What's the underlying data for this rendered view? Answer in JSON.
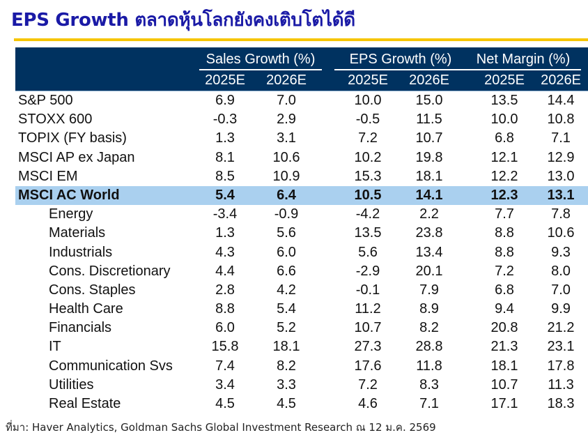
{
  "title": "EPS Growth ตลาดหุ้นโลกยังคงเติบโตได้ดี",
  "colors": {
    "title": "#1a1aa6",
    "rule": "#f6c500",
    "header_bg": "#003260",
    "highlight_bg": "#aad0ef"
  },
  "table": {
    "groups": [
      "Sales Growth (%)",
      "EPS Growth (%)",
      "Net Margin (%)"
    ],
    "years": [
      "2025E",
      "2026E",
      "2025E",
      "2026E",
      "2025E",
      "2026E"
    ],
    "rows": [
      {
        "label": "S&P 500",
        "values": [
          "6.9",
          "7.0",
          "10.0",
          "15.0",
          "13.5",
          "14.4"
        ]
      },
      {
        "label": "STOXX 600",
        "values": [
          "-0.3",
          "2.9",
          "-0.5",
          "11.5",
          "10.0",
          "10.8"
        ]
      },
      {
        "label": "TOPIX (FY basis)",
        "values": [
          "1.3",
          "3.1",
          "7.2",
          "10.7",
          "6.8",
          "7.1"
        ]
      },
      {
        "label": "MSCI AP ex Japan",
        "values": [
          "8.1",
          "10.6",
          "10.2",
          "19.8",
          "12.1",
          "12.9"
        ]
      },
      {
        "label": "MSCI EM",
        "values": [
          "8.5",
          "10.9",
          "15.3",
          "18.1",
          "12.2",
          "13.0"
        ]
      },
      {
        "label": "MSCI AC World",
        "values": [
          "5.4",
          "6.4",
          "10.5",
          "14.1",
          "12.3",
          "13.1"
        ]
      },
      {
        "label": "Energy",
        "values": [
          "-3.4",
          "-0.9",
          "-4.2",
          "2.2",
          "7.7",
          "7.8"
        ]
      },
      {
        "label": "Materials",
        "values": [
          "1.3",
          "5.6",
          "13.5",
          "23.8",
          "8.8",
          "10.6"
        ]
      },
      {
        "label": "Industrials",
        "values": [
          "4.3",
          "6.0",
          "5.6",
          "13.4",
          "8.8",
          "9.3"
        ]
      },
      {
        "label": "Cons. Discretionary",
        "values": [
          "4.4",
          "6.6",
          "-2.9",
          "20.1",
          "7.2",
          "8.0"
        ]
      },
      {
        "label": "Cons. Staples",
        "values": [
          "2.8",
          "4.2",
          "-0.1",
          "7.9",
          "6.8",
          "7.0"
        ]
      },
      {
        "label": "Health Care",
        "values": [
          "8.8",
          "5.4",
          "11.2",
          "8.9",
          "9.4",
          "9.9"
        ]
      },
      {
        "label": "Financials",
        "values": [
          "6.0",
          "5.2",
          "10.7",
          "8.2",
          "20.8",
          "21.2"
        ]
      },
      {
        "label": "IT",
        "values": [
          "15.8",
          "18.1",
          "27.3",
          "28.8",
          "21.3",
          "23.1"
        ]
      },
      {
        "label": "Communication Svs",
        "values": [
          "7.4",
          "8.2",
          "17.6",
          "11.8",
          "18.1",
          "17.8"
        ]
      },
      {
        "label": "Utilities",
        "values": [
          "3.4",
          "3.3",
          "7.2",
          "8.3",
          "10.7",
          "11.3"
        ]
      },
      {
        "label": "Real Estate",
        "values": [
          "4.5",
          "4.5",
          "4.6",
          "7.1",
          "17.1",
          "18.3"
        ]
      }
    ]
  },
  "source": "ที่มา: Haver Analytics, Goldman Sachs Global Investment Research ณ 12 ม.ค. 2569"
}
